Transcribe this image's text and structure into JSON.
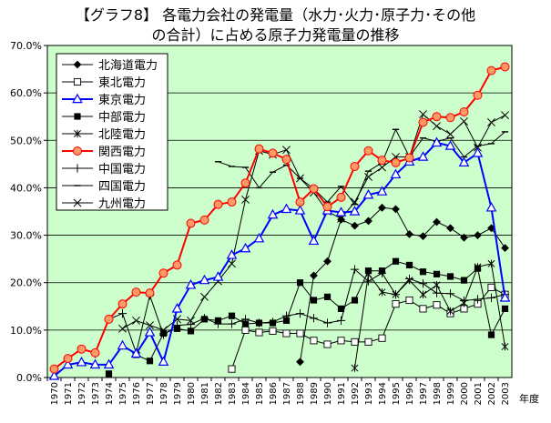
{
  "title_lines": [
    "【グラフ8】 各電力会社の発電量（水力･火力･原子力･その他",
    "の合計）に占める原子力発電量の推移"
  ],
  "x_unit": "年度",
  "colors": {
    "plot_bg": "#ccffcc",
    "default_series": "#000000",
    "kepco": "#ff0000",
    "kepco_fill": "#ff9966",
    "tepco": "#0000ff"
  },
  "chart_data": {
    "type": "line",
    "title": "【グラフ8】 各電力会社の発電量（水力･火力･原子力･その他の合計）に占める原子力発電量の推移",
    "xlabel": "年度",
    "ylabel": "",
    "ylim": [
      0,
      70
    ],
    "yticks": [
      0,
      10,
      20,
      30,
      40,
      50,
      60,
      70
    ],
    "ytick_labels": [
      "0.0%",
      "10.0%",
      "20.0%",
      "30.0%",
      "40.0%",
      "50.0%",
      "60.0%",
      "70.0%"
    ],
    "grid": "horizontal",
    "legend_position": "top-left",
    "categories": [
      "1970",
      "1971",
      "1972",
      "1973",
      "1974",
      "1975",
      "1976",
      "1977",
      "1978",
      "1979",
      "1980",
      "1981",
      "1982",
      "1983",
      "1984",
      "1985",
      "1986",
      "1987",
      "1988",
      "1989",
      "1990",
      "1991",
      "1992",
      "1993",
      "1994",
      "1995",
      "1996",
      "1997",
      "1998",
      "1999",
      "2000",
      "2001",
      "2002",
      "2003"
    ],
    "series": [
      {
        "name": "北海道電力",
        "marker": "diamond-filled",
        "color": "#000000",
        "values": [
          null,
          null,
          null,
          null,
          null,
          null,
          null,
          null,
          null,
          null,
          null,
          null,
          null,
          null,
          null,
          null,
          null,
          null,
          3.3,
          21.5,
          24.5,
          33.3,
          32.0,
          33.0,
          35.8,
          35.5,
          30.2,
          29.8,
          32.8,
          31.5,
          29.5,
          30.0,
          31.5,
          27.3
        ]
      },
      {
        "name": "東北電力",
        "marker": "square-open",
        "color": "#000000",
        "values": [
          null,
          null,
          null,
          null,
          null,
          null,
          null,
          null,
          null,
          null,
          null,
          null,
          null,
          1.8,
          10.0,
          9.5,
          9.8,
          9.3,
          9.3,
          7.8,
          7.0,
          7.8,
          7.5,
          7.5,
          8.3,
          15.5,
          16.3,
          14.5,
          15.3,
          13.5,
          14.5,
          15.5,
          19.0,
          17.5
        ]
      },
      {
        "name": "東京電力",
        "marker": "triangle-open",
        "color": "#0000ff",
        "values": [
          0.3,
          2.7,
          3.2,
          2.7,
          2.7,
          6.7,
          5.0,
          9.5,
          3.3,
          14.5,
          19.5,
          20.5,
          21.2,
          25.8,
          27.2,
          29.3,
          34.3,
          35.5,
          35.2,
          28.8,
          35.2,
          34.8,
          35.0,
          38.5,
          39.2,
          42.8,
          45.5,
          46.5,
          49.5,
          48.8,
          45.3,
          47.3,
          35.8,
          16.8
        ]
      },
      {
        "name": "中部電力",
        "marker": "square-filled",
        "color": "#000000",
        "values": [
          null,
          null,
          null,
          null,
          0.8,
          null,
          4.8,
          3.5,
          9.3,
          10.3,
          9.8,
          12.3,
          12.0,
          13.0,
          11.3,
          11.5,
          11.5,
          12.0,
          20.0,
          16.3,
          17.0,
          14.5,
          16.3,
          22.5,
          22.5,
          24.5,
          23.7,
          22.3,
          21.8,
          21.3,
          20.5,
          23.0,
          9.0,
          14.5
        ]
      },
      {
        "name": "北陸電力",
        "marker": "asterisk",
        "color": "#000000",
        "values": [
          null,
          null,
          null,
          null,
          null,
          null,
          null,
          null,
          null,
          null,
          null,
          null,
          null,
          null,
          null,
          null,
          null,
          null,
          null,
          null,
          null,
          null,
          2.0,
          21.8,
          18.0,
          17.5,
          20.5,
          17.5,
          19.5,
          14.0,
          15.7,
          23.3,
          24.0,
          6.5
        ]
      },
      {
        "name": "関西電力",
        "marker": "circle-filled-orange",
        "color": "#ff0000",
        "values": [
          1.8,
          4.0,
          6.0,
          5.2,
          12.3,
          15.5,
          18.0,
          17.8,
          22.0,
          23.7,
          32.5,
          33.2,
          36.5,
          37.0,
          41.0,
          48.2,
          47.3,
          46.0,
          37.0,
          39.8,
          36.0,
          38.0,
          44.5,
          47.8,
          45.8,
          45.3,
          46.3,
          53.8,
          55.0,
          54.8,
          56.0,
          59.5,
          64.7,
          65.5
        ]
      },
      {
        "name": "中国電力",
        "marker": "plus",
        "color": "#000000",
        "values": [
          null,
          null,
          null,
          5.0,
          12.3,
          13.5,
          5.2,
          17.3,
          9.0,
          11.0,
          11.2,
          12.5,
          11.3,
          11.3,
          12.3,
          11.5,
          11.7,
          13.0,
          13.5,
          12.5,
          11.5,
          12.0,
          22.8,
          20.3,
          22.0,
          17.5,
          20.8,
          19.8,
          17.8,
          17.7,
          16.2,
          16.5,
          16.8,
          17.5
        ]
      },
      {
        "name": "四国電力",
        "marker": "dash",
        "color": "#000000",
        "values": [
          null,
          null,
          null,
          null,
          null,
          null,
          null,
          null,
          null,
          null,
          null,
          null,
          45.5,
          44.5,
          44.3,
          40.0,
          43.3,
          44.8,
          42.0,
          39.8,
          37.0,
          40.3,
          36.5,
          43.5,
          45.3,
          52.3,
          46.5,
          50.5,
          49.8,
          50.5,
          46.5,
          48.8,
          49.3,
          51.8
        ]
      },
      {
        "name": "九州電力",
        "marker": "x",
        "color": "#000000",
        "values": [
          null,
          null,
          null,
          null,
          null,
          10.3,
          12.0,
          11.0,
          10.0,
          12.3,
          12.0,
          17.0,
          20.3,
          24.0,
          37.5,
          47.8,
          47.0,
          48.0,
          42.0,
          39.0,
          35.0,
          33.5,
          37.0,
          42.3,
          44.3,
          46.5,
          46.5,
          55.5,
          53.0,
          51.3,
          54.0,
          48.5,
          53.8,
          55.3
        ]
      }
    ]
  }
}
